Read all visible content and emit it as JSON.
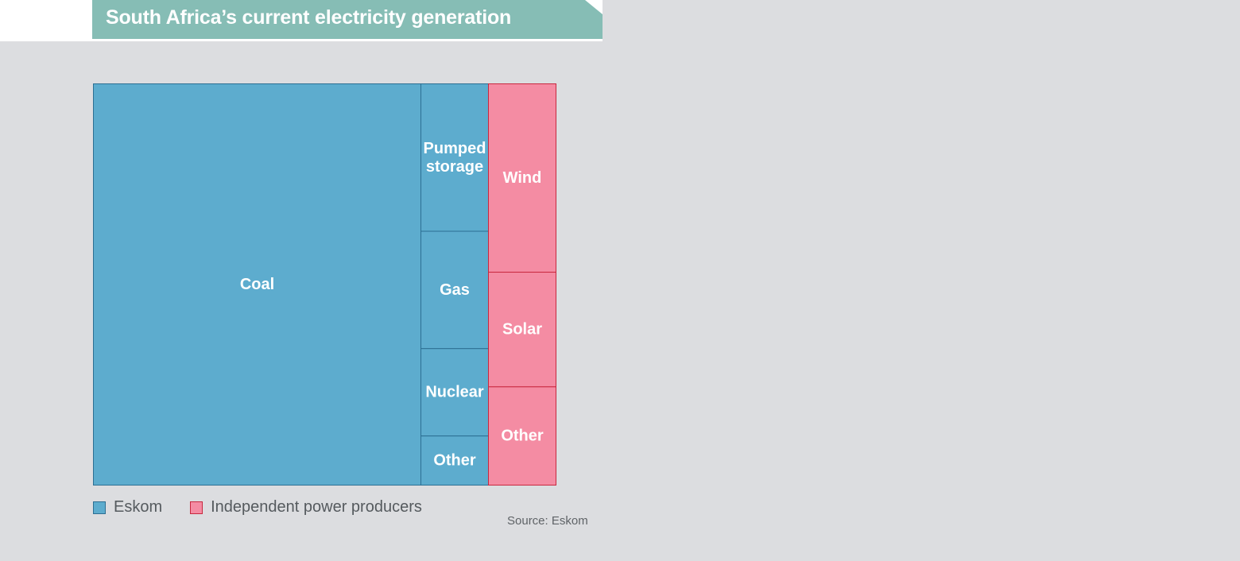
{
  "title": "South Africa’s current electricity generation",
  "source": "Source: Eskom",
  "colors": {
    "Eskom": "#5dacce",
    "Eskom_border": "#2d6f93",
    "Independent power producers": "#f48ca3",
    "Independent power producers_border": "#c8283f",
    "title_banner": "#86bdb5"
  },
  "legend": [
    {
      "label": "Eskom",
      "color": "#5dacce",
      "border": "#2d6f93"
    },
    {
      "label": "Independent power producers",
      "color": "#f48ca3",
      "border": "#c8283f"
    }
  ],
  "chart_data": {
    "type": "treemap",
    "title": "South Africa’s current electricity generation",
    "unit": "share of total area (approx.)",
    "groups": [
      {
        "name": "Eskom",
        "items": [
          {
            "label": "Coal",
            "value": 70.6
          },
          {
            "label": "Pumped storage",
            "value": 5.4
          },
          {
            "label": "Gas",
            "value": 4.3
          },
          {
            "label": "Nuclear",
            "value": 3.2
          },
          {
            "label": "Other",
            "value": 1.8
          }
        ]
      },
      {
        "name": "Independent power producers",
        "items": [
          {
            "label": "Wind",
            "value": 6.9
          },
          {
            "label": "Solar",
            "value": 4.2
          },
          {
            "label": "Other",
            "value": 3.6
          }
        ]
      }
    ]
  }
}
